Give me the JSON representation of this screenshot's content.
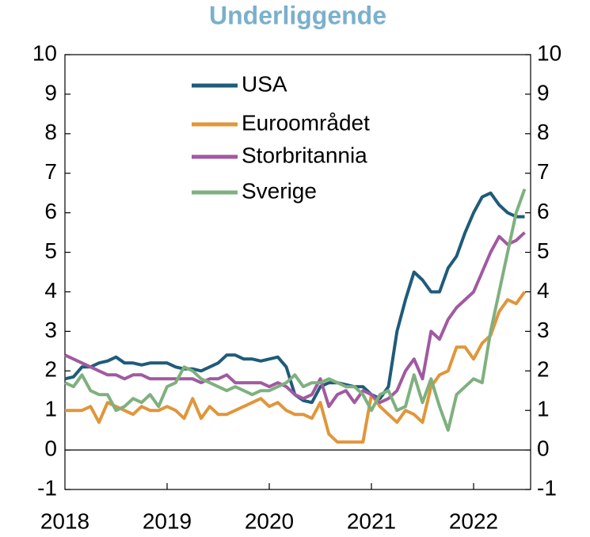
{
  "chart_data": {
    "type": "line",
    "title": "Underliggende",
    "categories": [
      "2018",
      null,
      null,
      null,
      null,
      null,
      null,
      null,
      null,
      null,
      null,
      null,
      "2019",
      null,
      null,
      null,
      null,
      null,
      null,
      null,
      null,
      null,
      null,
      null,
      "2020",
      null,
      null,
      null,
      null,
      null,
      null,
      null,
      null,
      null,
      null,
      null,
      "2021",
      null,
      null,
      null,
      null,
      null,
      null,
      null,
      null,
      null,
      null,
      null,
      "2022",
      null,
      null,
      null,
      null,
      null,
      null
    ],
    "series": [
      {
        "name": "USA",
        "color": "#1f5b7a",
        "values": [
          1.8,
          1.85,
          2.1,
          2.1,
          2.2,
          2.25,
          2.35,
          2.2,
          2.2,
          2.15,
          2.2,
          2.2,
          2.2,
          2.1,
          2.05,
          2.05,
          2.0,
          2.1,
          2.2,
          2.4,
          2.4,
          2.3,
          2.3,
          2.25,
          2.3,
          2.35,
          2.1,
          1.4,
          1.25,
          1.2,
          1.6,
          1.7,
          1.7,
          1.65,
          1.6,
          1.6,
          1.4,
          1.3,
          1.6,
          3.0,
          3.8,
          4.5,
          4.3,
          4.0,
          4.0,
          4.6,
          4.9,
          5.5,
          6.0,
          6.4,
          6.5,
          6.2,
          6.0,
          5.9,
          5.9
        ]
      },
      {
        "name": "Euroområdet",
        "color": "#e0963a",
        "values": [
          1.0,
          1.0,
          1.0,
          1.1,
          0.7,
          1.2,
          1.1,
          1.0,
          0.9,
          1.1,
          1.0,
          1.0,
          1.1,
          1.0,
          0.8,
          1.3,
          0.8,
          1.1,
          0.9,
          0.9,
          1.0,
          1.1,
          1.2,
          1.3,
          1.1,
          1.2,
          1.0,
          0.9,
          0.9,
          0.8,
          1.2,
          0.4,
          0.2,
          0.2,
          0.2,
          0.2,
          1.4,
          1.1,
          0.9,
          0.7,
          1.0,
          0.9,
          0.7,
          1.6,
          1.9,
          2.0,
          2.6,
          2.6,
          2.3,
          2.7,
          2.9,
          3.5,
          3.8,
          3.7,
          4.0
        ]
      },
      {
        "name": "Storbritannia",
        "color": "#a05aa0",
        "values": [
          2.4,
          2.3,
          2.2,
          2.1,
          2.0,
          1.9,
          1.9,
          1.8,
          1.9,
          1.9,
          1.8,
          1.8,
          1.8,
          1.8,
          1.8,
          1.8,
          1.7,
          1.8,
          1.8,
          1.9,
          1.7,
          1.7,
          1.7,
          1.7,
          1.6,
          1.7,
          1.6,
          1.4,
          1.3,
          1.4,
          1.8,
          1.1,
          1.4,
          1.5,
          1.2,
          1.5,
          1.4,
          1.2,
          1.3,
          1.5,
          2.0,
          2.3,
          1.8,
          3.0,
          2.8,
          3.3,
          3.6,
          3.8,
          4.0,
          4.5,
          5.0,
          5.4,
          5.2,
          5.3,
          5.5
        ]
      },
      {
        "name": "Sverige",
        "color": "#7fb07f",
        "values": [
          1.7,
          1.6,
          1.9,
          1.5,
          1.4,
          1.4,
          1.0,
          1.1,
          1.3,
          1.2,
          1.4,
          1.1,
          1.6,
          1.7,
          2.1,
          2.0,
          1.8,
          1.7,
          1.6,
          1.5,
          1.6,
          1.5,
          1.4,
          1.5,
          1.5,
          1.6,
          1.7,
          1.9,
          1.6,
          1.7,
          1.7,
          1.8,
          1.7,
          1.6,
          1.6,
          1.4,
          1.0,
          1.4,
          1.5,
          1.0,
          1.1,
          1.9,
          1.2,
          1.8,
          1.1,
          0.5,
          1.4,
          1.6,
          1.8,
          1.7,
          3.0,
          4.0,
          5.0,
          6.0,
          6.6
        ]
      }
    ],
    "ylim": [
      -1,
      10
    ],
    "yticks": [
      -1,
      0,
      1,
      2,
      3,
      4,
      5,
      6,
      7,
      8,
      9,
      10
    ],
    "y2lim": [
      -1,
      10
    ],
    "y2ticks": [
      -1,
      0,
      1,
      2,
      3,
      4,
      5,
      6,
      7,
      8,
      9,
      10
    ],
    "title_color": "#7ab0cc"
  }
}
